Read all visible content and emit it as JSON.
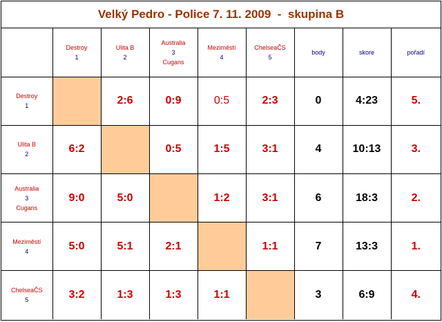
{
  "title": "Velký Pedro - Police 7. 11. 2009  -  skupina B",
  "headers": {
    "points": "body",
    "score": "skore",
    "rank": "pořadí"
  },
  "teams": [
    {
      "name": "Destroy",
      "num": "1",
      "extra": ""
    },
    {
      "name": "Ulita B",
      "num": "2",
      "extra": ""
    },
    {
      "name": "Australia",
      "num": "3",
      "extra": "Cugans"
    },
    {
      "name": "Meziměstí",
      "num": "4",
      "extra": ""
    },
    {
      "name": "ChelseaČS",
      "num": "5",
      "extra": ""
    }
  ],
  "rows": [
    {
      "results": [
        "",
        "2:6",
        "0:9",
        "0:5",
        "2:3"
      ],
      "points": "0",
      "score": "4:23",
      "rank": "5."
    },
    {
      "results": [
        "6:2",
        "",
        "0:5",
        "1:5",
        "3:1"
      ],
      "points": "4",
      "score": "10:13",
      "rank": "3."
    },
    {
      "results": [
        "9:0",
        "5:0",
        "",
        "1:2",
        "3:1"
      ],
      "points": "6",
      "score": "18:3",
      "rank": "2."
    },
    {
      "results": [
        "5:0",
        "5:1",
        "2:1",
        "",
        "1:1"
      ],
      "points": "7",
      "score": "13:3",
      "rank": "1."
    },
    {
      "results": [
        "3:2",
        "1:3",
        "1:3",
        "1:1",
        ""
      ],
      "points": "3",
      "score": "6:9",
      "rank": "4."
    }
  ],
  "colors": {
    "title": "#993300",
    "team_name": "#cc0000",
    "team_number": "#000080",
    "diagonal": "#ffcc99"
  }
}
